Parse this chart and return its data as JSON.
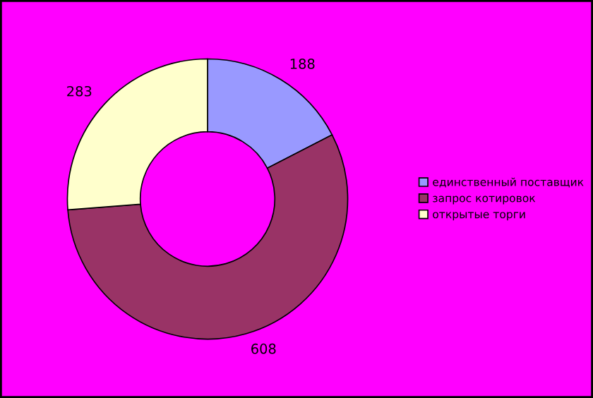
{
  "chart_data": {
    "type": "donut",
    "categories": [
      "единственный поставщик",
      "запрос котировок",
      "открытые торги"
    ],
    "values": [
      188,
      608,
      283
    ],
    "colors": [
      "#9999ff",
      "#993366",
      "#ffffcc"
    ],
    "data_labels": true,
    "legend": "right"
  }
}
